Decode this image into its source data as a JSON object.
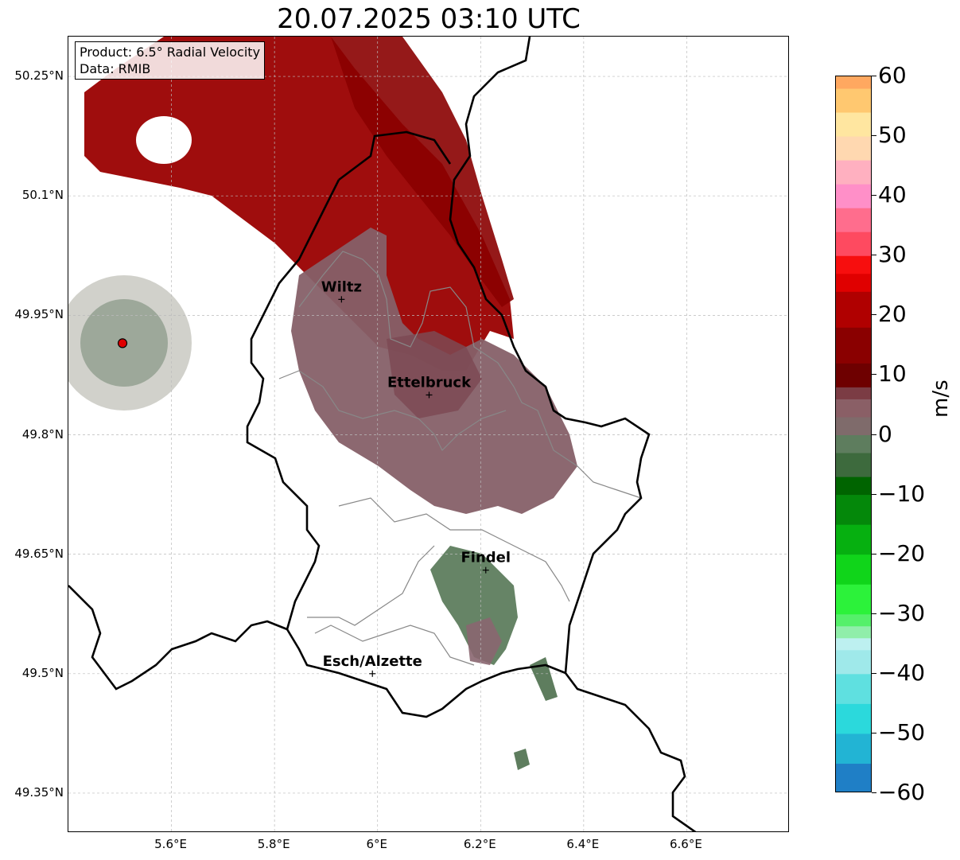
{
  "title": "20.07.2025 03:10 UTC",
  "info": {
    "product_line": "Product: 6.5° Radial Velocity",
    "data_line": "Data: RMIB"
  },
  "axes": {
    "lat_ticks": [
      "50.25°N",
      "50.1°N",
      "49.95°N",
      "49.8°N",
      "49.65°N",
      "49.5°N",
      "49.35°N"
    ],
    "lon_ticks": [
      "5.6°E",
      "5.8°E",
      "6°E",
      "6.2°E",
      "6.4°E",
      "6.6°E"
    ],
    "lat_values": [
      50.25,
      50.1,
      49.95,
      49.8,
      49.65,
      49.5,
      49.35
    ],
    "lon_values": [
      5.6,
      5.8,
      6.0,
      6.2,
      6.4,
      6.6
    ],
    "lat_range": [
      49.3,
      50.3
    ],
    "lon_range": [
      5.4,
      6.8
    ]
  },
  "cities": [
    {
      "name": "Wiltz",
      "lon": 5.93,
      "lat": 49.97
    },
    {
      "name": "Ettelbruck",
      "lon": 6.1,
      "lat": 49.85
    },
    {
      "name": "Findel",
      "lon": 6.21,
      "lat": 49.63
    },
    {
      "name": "Esch/Alzette",
      "lon": 5.99,
      "lat": 49.5
    }
  ],
  "radar_site": {
    "lon": 5.505,
    "lat": 49.915,
    "color": "#e00000"
  },
  "colorbar": {
    "unit": "m/s",
    "min": -60,
    "max": 60,
    "tick_labels": [
      "60",
      "50",
      "40",
      "30",
      "20",
      "10",
      "0",
      "−10",
      "−20",
      "−30",
      "−40",
      "−50",
      "−60"
    ],
    "tick_values": [
      60,
      50,
      40,
      30,
      20,
      10,
      0,
      -10,
      -20,
      -30,
      -40,
      -50,
      -60
    ]
  },
  "colors": {
    "strong_inbound_red": "#9a0000",
    "near_zero_mauve": "#8a6068",
    "near_zero_green": "#5e7d5e",
    "border_black": "#000000",
    "admin_gray": "#888888",
    "grid_gray": "#bbbbbb"
  }
}
